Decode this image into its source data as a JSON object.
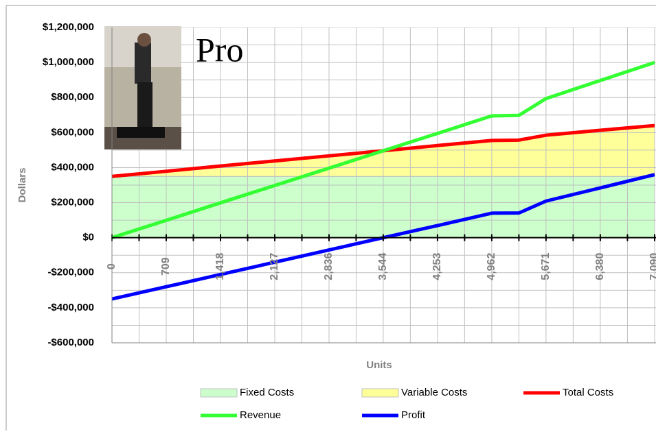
{
  "chart_data": {
    "type": "line",
    "annotation": "Pro",
    "x_label": "Units",
    "y_label": "Dollars",
    "x": [
      0,
      709,
      1418,
      2127,
      2836,
      3544,
      4253,
      4962,
      5317,
      5671,
      6380,
      7090
    ],
    "xlim": [
      0,
      7090
    ],
    "xticks": [
      0,
      709,
      {
        "value": 1418,
        "label": "1,418"
      },
      {
        "value": 2127,
        "label": "2,127"
      },
      {
        "value": 2836,
        "label": "2,836"
      },
      {
        "value": 3544,
        "label": "3,544"
      },
      {
        "value": 4253,
        "label": "4,253"
      },
      {
        "value": 4962,
        "label": "4,962"
      },
      {
        "value": 5671,
        "label": "5,671"
      },
      {
        "value": 6380,
        "label": "6,380"
      },
      {
        "value": 7090,
        "label": "7,090"
      }
    ],
    "ylim": [
      -600000,
      1200000
    ],
    "yticks": [
      {
        "value": -600000,
        "label": "-$600,000"
      },
      {
        "value": -400000,
        "label": "-$400,000"
      },
      {
        "value": -200000,
        "label": "-$200,000"
      },
      {
        "value": 0,
        "label": "$0"
      },
      {
        "value": 200000,
        "label": "$200,000"
      },
      {
        "value": 400000,
        "label": "$400,000"
      },
      {
        "value": 600000,
        "label": "$600,000"
      },
      {
        "value": 800000,
        "label": "$800,000"
      },
      {
        "value": 1000000,
        "label": "$1,000,000"
      },
      {
        "value": 1200000,
        "label": "$1,200,000"
      }
    ],
    "grid": true,
    "minor_grid": true,
    "series": [
      {
        "name": "Fixed Costs",
        "kind": "area",
        "color": "#ccffcc",
        "values": [
          350000,
          350000,
          350000,
          350000,
          350000,
          350000,
          350000,
          350000,
          350000,
          350000,
          350000,
          350000
        ]
      },
      {
        "name": "Variable Costs",
        "kind": "area",
        "color": "#ffff99",
        "values": [
          0,
          29000,
          59000,
          88000,
          117000,
          146000,
          176000,
          205000,
          207000,
          235000,
          263000,
          290000
        ]
      },
      {
        "name": "Total Costs",
        "kind": "line",
        "color": "#ff0000",
        "values": [
          350000,
          379000,
          409000,
          438000,
          467000,
          496000,
          526000,
          555000,
          557000,
          585000,
          613000,
          640000
        ]
      },
      {
        "name": "Revenue",
        "kind": "line",
        "color": "#33ff33",
        "values": [
          0,
          99000,
          199000,
          298000,
          397000,
          496000,
          595000,
          695000,
          698000,
          794000,
          897000,
          1000000
        ]
      },
      {
        "name": "Profit",
        "kind": "line",
        "color": "#0000ff",
        "values": [
          -350000,
          -280000,
          -210000,
          -140000,
          -70000,
          0,
          69000,
          140000,
          141000,
          209000,
          284000,
          360000
        ]
      }
    ]
  }
}
